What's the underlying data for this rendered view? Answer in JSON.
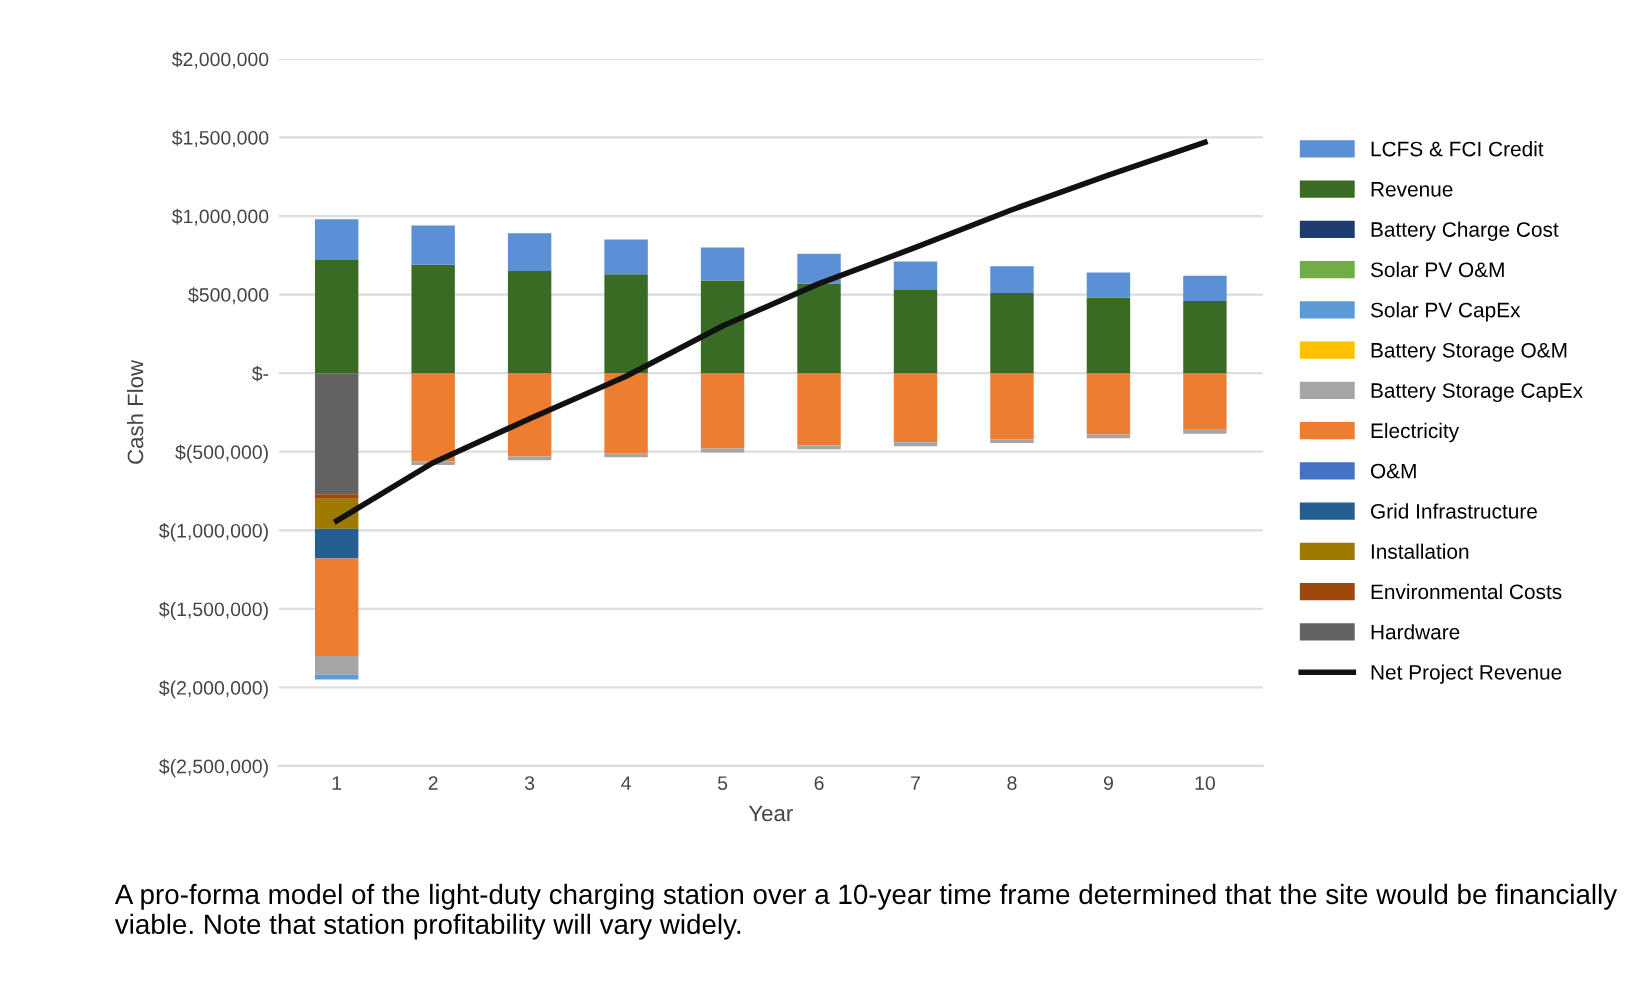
{
  "chart_data": {
    "type": "bar",
    "stacked": true,
    "xlabel": "Year",
    "ylabel": "Cash Flow",
    "categories": [
      "1",
      "2",
      "3",
      "4",
      "5",
      "6",
      "7",
      "8",
      "9",
      "10"
    ],
    "ylim": [
      -2500000,
      2000000
    ],
    "yticks": [
      {
        "value": 2000000,
        "label": "$2,000,000"
      },
      {
        "value": 1500000,
        "label": "$1,500,000"
      },
      {
        "value": 1000000,
        "label": "$1,000,000"
      },
      {
        "value": 500000,
        "label": "$500,000"
      },
      {
        "value": 0,
        "label": "$-"
      },
      {
        "value": -500000,
        "label": "$(500,000)"
      },
      {
        "value": -1000000,
        "label": "$(1,000,000)"
      },
      {
        "value": -1500000,
        "label": "$(1,500,000)"
      },
      {
        "value": -2000000,
        "label": "$(2,000,000)"
      },
      {
        "value": -2500000,
        "label": "$(2,500,000)"
      }
    ],
    "grid": "y",
    "legend": "right",
    "series": [
      {
        "name": "Hardware",
        "color": "#636363",
        "values": [
          -770000,
          null,
          null,
          null,
          null,
          null,
          null,
          null,
          null,
          null
        ]
      },
      {
        "name": "Environmental Costs",
        "color": "#9e480e",
        "values": [
          -30000,
          null,
          null,
          null,
          null,
          null,
          null,
          null,
          null,
          null
        ]
      },
      {
        "name": "Installation",
        "color": "#9e7a00",
        "values": [
          -190000,
          null,
          null,
          null,
          null,
          null,
          null,
          null,
          null,
          null
        ]
      },
      {
        "name": "Grid Infrastructure",
        "color": "#255e91",
        "values": [
          -190000,
          null,
          null,
          null,
          null,
          null,
          null,
          null,
          null,
          null
        ]
      },
      {
        "name": "O&M",
        "color": "#4472c4",
        "values": [
          null,
          null,
          null,
          null,
          null,
          null,
          null,
          null,
          null,
          null
        ]
      },
      {
        "name": "Electricity",
        "color": "#ed7d31",
        "values": [
          -620000,
          -560000,
          -530000,
          -510000,
          -480000,
          -460000,
          -440000,
          -420000,
          -390000,
          -360000
        ]
      },
      {
        "name": "Battery Storage CapEx",
        "color": "#a5a5a5",
        "values": [
          -120000,
          -25000,
          -25000,
          -25000,
          -25000,
          -25000,
          -25000,
          -25000,
          -25000,
          -25000
        ]
      },
      {
        "name": "Battery Storage O&M",
        "color": "#ffc000",
        "values": [
          null,
          null,
          null,
          null,
          null,
          null,
          null,
          null,
          null,
          null
        ]
      },
      {
        "name": "Solar PV CapEx",
        "color": "#5b9bd5",
        "values": [
          -30000,
          null,
          null,
          null,
          null,
          null,
          null,
          null,
          null,
          null
        ]
      },
      {
        "name": "Solar PV O&M",
        "color": "#70ad47",
        "values": [
          null,
          null,
          null,
          null,
          null,
          null,
          null,
          null,
          null,
          null
        ]
      },
      {
        "name": "Battery Charge Cost",
        "color": "#1f3a6e",
        "values": [
          null,
          null,
          null,
          null,
          null,
          null,
          null,
          null,
          null,
          null
        ]
      },
      {
        "name": "Revenue",
        "color": "#3a6b25",
        "values": [
          720000,
          690000,
          650000,
          630000,
          590000,
          570000,
          530000,
          510000,
          480000,
          460000
        ]
      },
      {
        "name": "LCFS & FCI Credit",
        "color": "#5b8fd6",
        "values": [
          260000,
          250000,
          240000,
          220000,
          210000,
          190000,
          180000,
          170000,
          160000,
          160000
        ]
      },
      {
        "name": "Net Project Revenue",
        "type": "line",
        "color": "#111111",
        "marker": "none",
        "line_style": "solid",
        "values": [
          -940000,
          -570000,
          -290000,
          -20000,
          300000,
          570000,
          800000,
          1040000,
          1260000,
          1470000
        ]
      }
    ],
    "annotations": [
      "A pro-forma model of the light-duty charging station over a 10-year time frame determined that the site would be financially viable. Note that station profitability will vary widely."
    ]
  }
}
